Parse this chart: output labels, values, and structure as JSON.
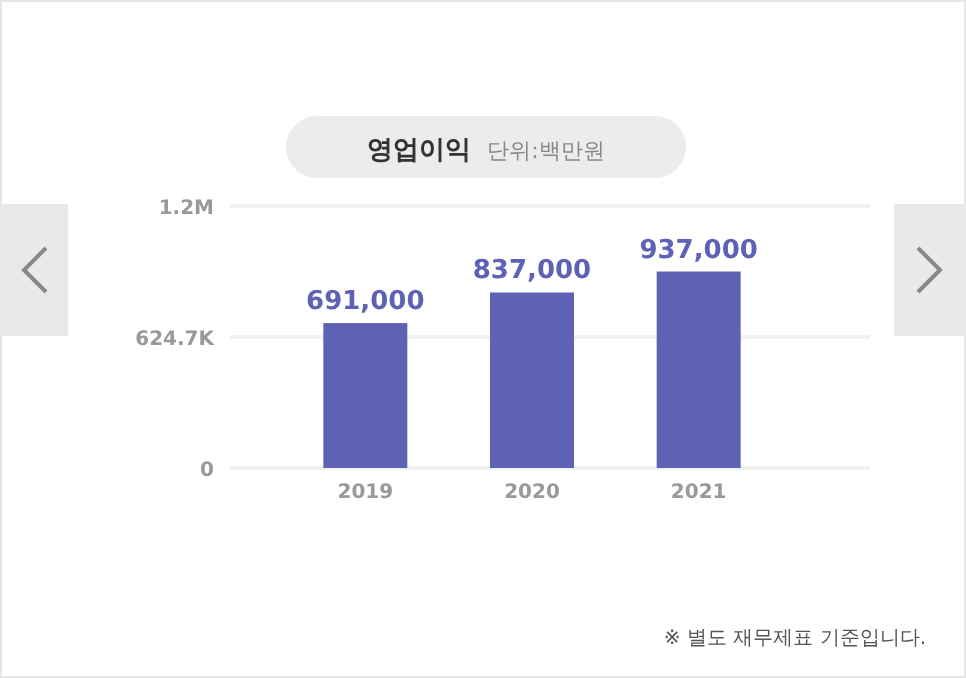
{
  "chart_data": {
    "type": "bar",
    "title": "영업이익",
    "subtitle": "단위:백만원",
    "categories": [
      "2019",
      "2020",
      "2021"
    ],
    "values": [
      691000,
      837000,
      937000
    ],
    "value_labels": [
      "691,000",
      "837,000",
      "937,000"
    ],
    "color": "#5d62b5",
    "ylim": [
      0,
      1249400
    ],
    "yticks": [
      0,
      {
        "value": 624700,
        "label": "624.7K"
      },
      {
        "value": 1249400,
        "label": "1.2M"
      }
    ],
    "grid": "y",
    "annotations": [
      "※ 별도 재무제표 기준입니다."
    ]
  }
}
